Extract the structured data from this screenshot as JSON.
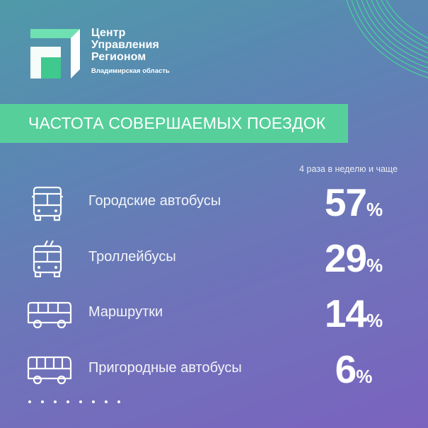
{
  "brand": {
    "line1": "Центр",
    "line2": "Управления",
    "line3": "Регионом",
    "region": "Владимирская область"
  },
  "title": "ЧАСТОТА СОВЕРШАЕМЫХ ПОЕЗДОК",
  "note": "4 раза в неделю и чаще",
  "rows": [
    {
      "icon": "city-bus-icon",
      "label": "Городские автобусы",
      "value": "57",
      "unit": "%"
    },
    {
      "icon": "trolleybus-icon",
      "label": "Троллейбусы",
      "value": "29",
      "unit": "%"
    },
    {
      "icon": "minibus-icon",
      "label": "Маршрутки",
      "value": "14",
      "unit": "%"
    },
    {
      "icon": "suburban-bus-icon",
      "label": "Пригородные автобусы",
      "value": "6",
      "unit": "%"
    }
  ],
  "colors": {
    "accent": "#57cf9b",
    "bg_start": "#4f9aa9",
    "bg_end": "#7a63bf"
  }
}
